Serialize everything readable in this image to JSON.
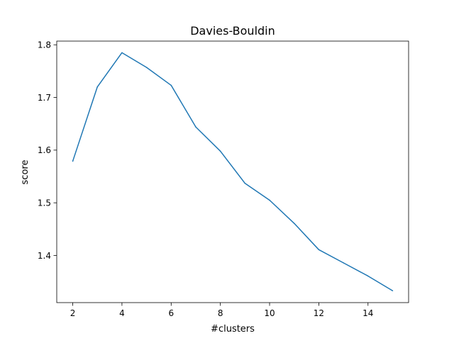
{
  "chart_data": {
    "type": "line",
    "title": "Davies-Bouldin",
    "xlabel": "#clusters",
    "ylabel": "score",
    "xlim": [
      1.35,
      15.65
    ],
    "ylim": [
      1.3105,
      1.807
    ],
    "xticks": [
      2,
      4,
      6,
      8,
      10,
      12,
      14
    ],
    "xtick_labels": [
      "2",
      "4",
      "6",
      "8",
      "10",
      "12",
      "14"
    ],
    "yticks": [
      1.4,
      1.5,
      1.6,
      1.7,
      1.8
    ],
    "ytick_labels": [
      "1.4",
      "1.5",
      "1.6",
      "1.7",
      "1.8"
    ],
    "grid": false,
    "legend": "none",
    "x": [
      2,
      3,
      4,
      5,
      6,
      7,
      8,
      9,
      10,
      11,
      12,
      13,
      14,
      15
    ],
    "series": [
      {
        "color": "#1f77b4",
        "values": [
          1.579,
          1.72,
          1.785,
          1.757,
          1.723,
          1.644,
          1.598,
          1.537,
          1.505,
          1.461,
          1.411,
          1.386,
          1.361,
          1.333
        ]
      }
    ]
  }
}
